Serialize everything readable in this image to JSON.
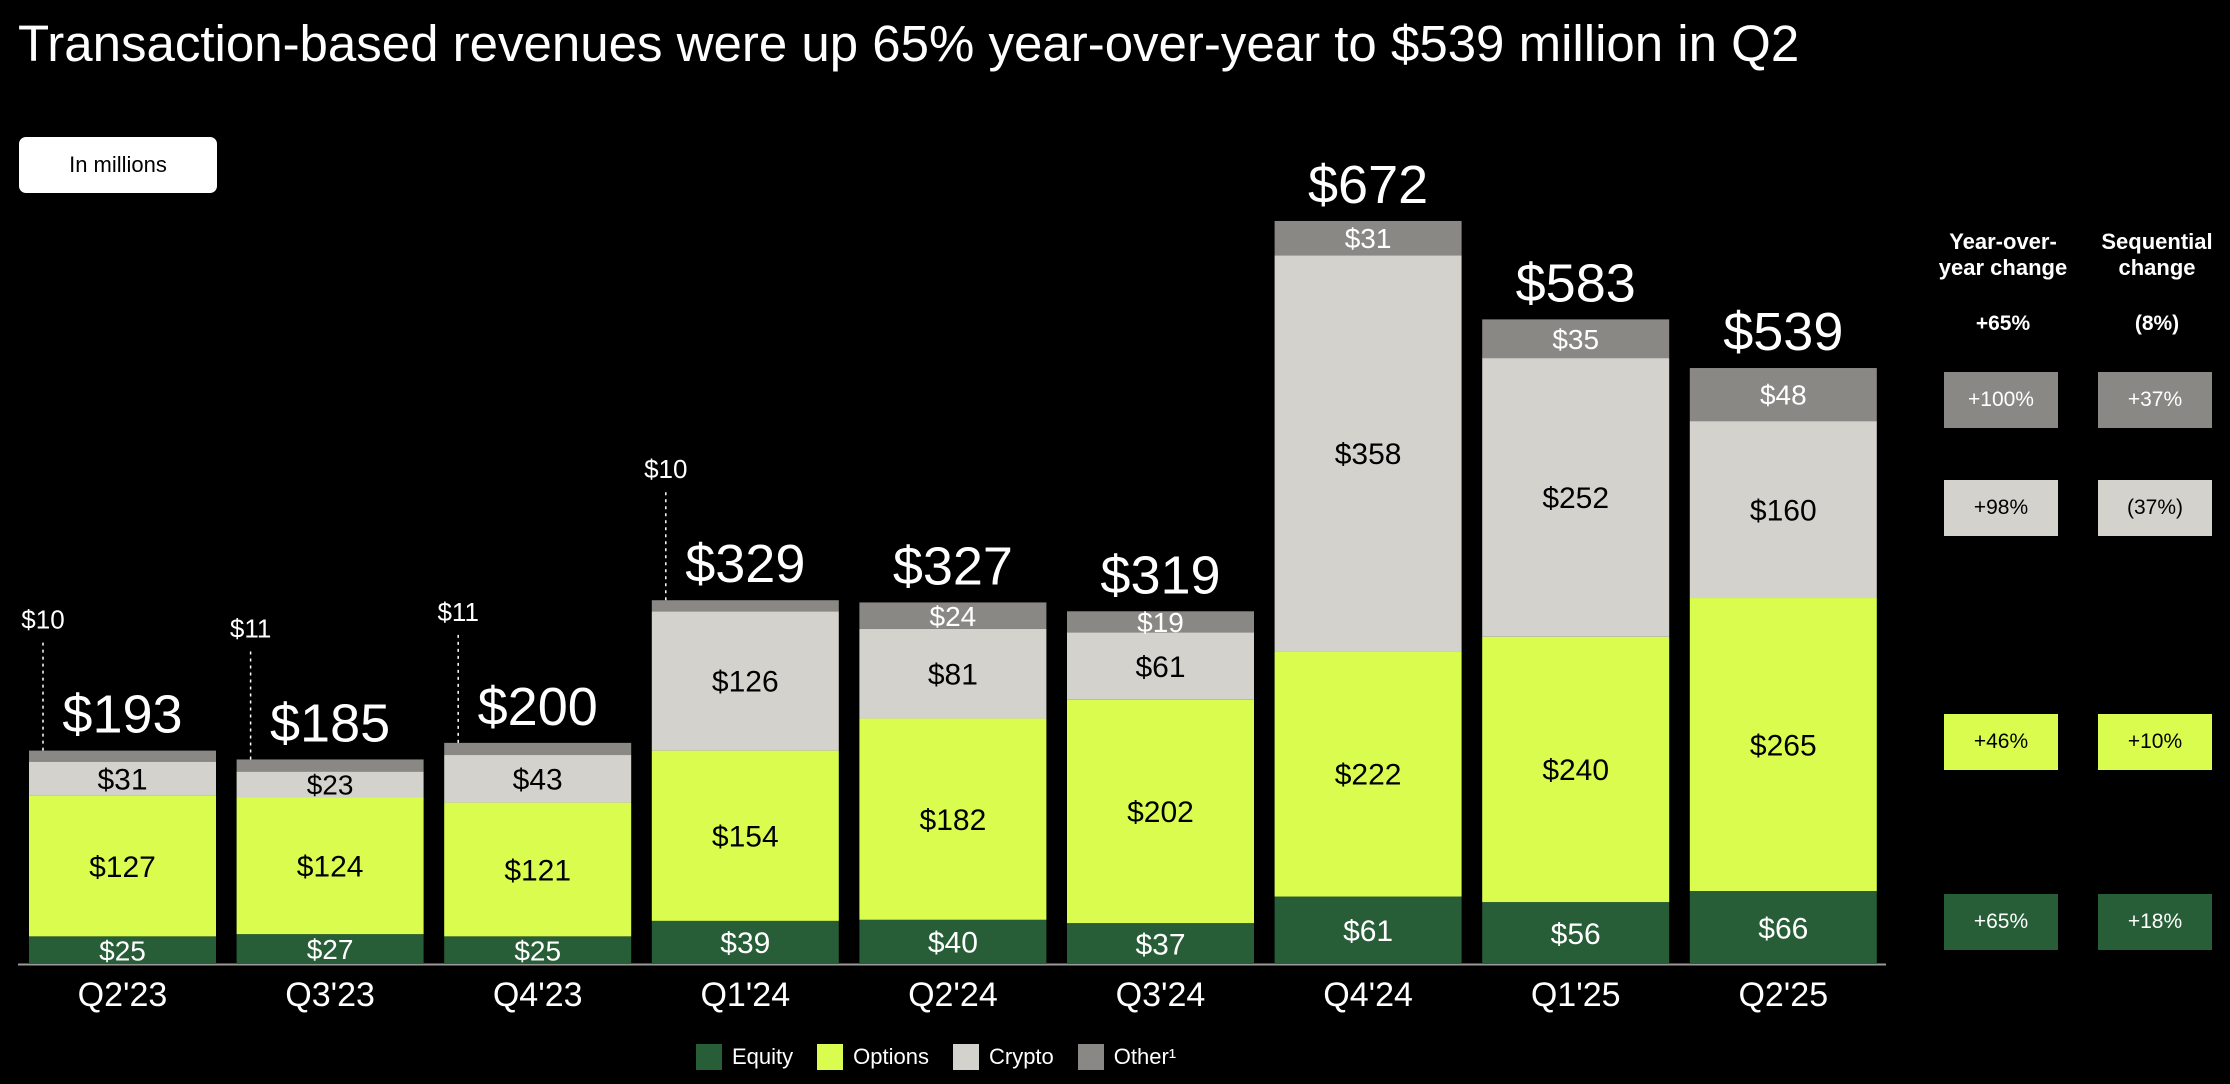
{
  "title": "Transaction-based revenues were up 65% year-over-year to $539 million in Q2",
  "units_label": "In millions",
  "colors": {
    "Equity": "#275e37",
    "Options": "#dafc4f",
    "Crypto": "#d4d2cd",
    "Other": "#8a8884",
    "background": "#000000"
  },
  "chart_data": {
    "type": "bar",
    "stacked": true,
    "categories": [
      "Q2'23",
      "Q3'23",
      "Q4'23",
      "Q1'24",
      "Q2'24",
      "Q3'24",
      "Q4'24",
      "Q1'25",
      "Q2'25"
    ],
    "series": [
      {
        "name": "Equity",
        "values": [
          25,
          27,
          25,
          39,
          40,
          37,
          61,
          56,
          66
        ],
        "labels": [
          "$25",
          "$27",
          "$25",
          "$39",
          "$40",
          "$37",
          "$61",
          "$56",
          "$66"
        ]
      },
      {
        "name": "Options",
        "values": [
          127,
          124,
          121,
          154,
          182,
          202,
          222,
          240,
          265
        ],
        "labels": [
          "$127",
          "$124",
          "$121",
          "$154",
          "$182",
          "$202",
          "$222",
          "$240",
          "$265"
        ]
      },
      {
        "name": "Crypto",
        "values": [
          31,
          23,
          43,
          126,
          81,
          61,
          358,
          252,
          160
        ],
        "labels": [
          "$31",
          "$23",
          "$43",
          "$126",
          "$81",
          "$61",
          "$358",
          "$252",
          "$160"
        ]
      },
      {
        "name": "Other¹",
        "values": [
          10,
          11,
          11,
          10,
          24,
          19,
          31,
          35,
          48
        ],
        "labels": [
          "$10",
          "$11",
          "$11",
          "$10",
          "$24",
          "$19",
          "$31",
          "$35",
          "$48"
        ]
      }
    ],
    "totals": [
      193,
      185,
      200,
      329,
      327,
      319,
      672,
      583,
      539
    ],
    "total_labels": [
      "$193",
      "$185",
      "$200",
      "$329",
      "$327",
      "$319",
      "$672",
      "$583",
      "$539"
    ],
    "other_label_external": [
      true,
      true,
      true,
      true,
      false,
      false,
      false,
      false,
      false
    ],
    "ylim": [
      0,
      700
    ],
    "xlabel": "",
    "ylabel": "",
    "legend": "bottom"
  },
  "change_table": {
    "headers": {
      "yoy": "Year-over-\nyear change",
      "seq": "Sequential\nchange"
    },
    "totals": {
      "yoy": "+65%",
      "seq": "(8%)"
    },
    "rows": [
      {
        "series": "Other",
        "yoy": "+100%",
        "seq": "+37%"
      },
      {
        "series": "Crypto",
        "yoy": "+98%",
        "seq": "(37%)"
      },
      {
        "series": "Options",
        "yoy": "+46%",
        "seq": "+10%"
      },
      {
        "series": "Equity",
        "yoy": "+65%",
        "seq": "+18%"
      }
    ]
  },
  "legend_items": [
    {
      "label": "Equity",
      "color": "#275e37"
    },
    {
      "label": "Options",
      "color": "#dafc4f"
    },
    {
      "label": "Crypto",
      "color": "#d4d2cd"
    },
    {
      "label": "Other¹",
      "color": "#8a8884"
    }
  ]
}
